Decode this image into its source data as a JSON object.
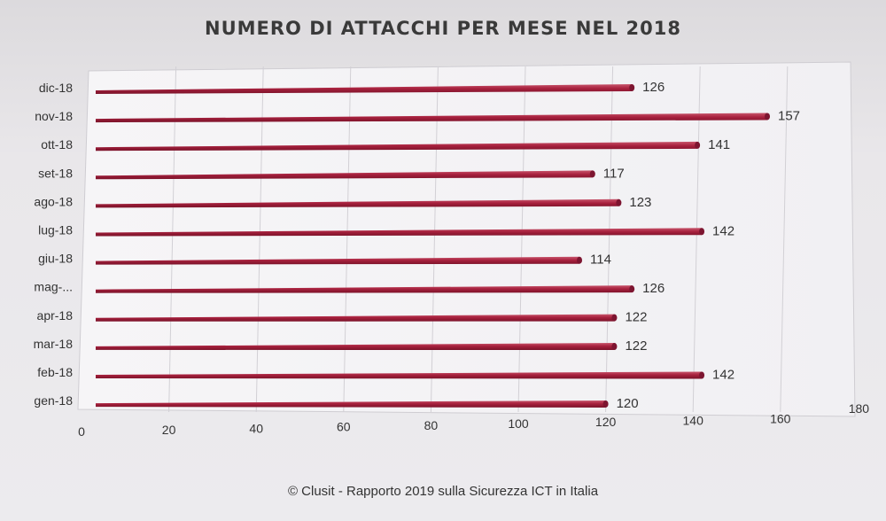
{
  "chart_data": {
    "type": "bar",
    "orientation": "horizontal",
    "title": "NUMERO DI ATTACCHI PER MESE NEL 2018",
    "categories": [
      "dic-18",
      "nov-18",
      "ott-18",
      "set-18",
      "ago-18",
      "lug-18",
      "giu-18",
      "mag-...",
      "apr-18",
      "mar-18",
      "feb-18",
      "gen-18"
    ],
    "values": [
      126,
      157,
      141,
      117,
      123,
      142,
      114,
      126,
      122,
      122,
      142,
      120
    ],
    "xlim": [
      0,
      180
    ],
    "x_ticks": [
      0,
      20,
      40,
      60,
      80,
      100,
      120,
      140,
      160,
      180
    ],
    "grid": true,
    "bar_color": "#a8213e"
  },
  "footer": {
    "source": "© Clusit - Rapporto 2019 sulla Sicurezza ICT in Italia"
  }
}
